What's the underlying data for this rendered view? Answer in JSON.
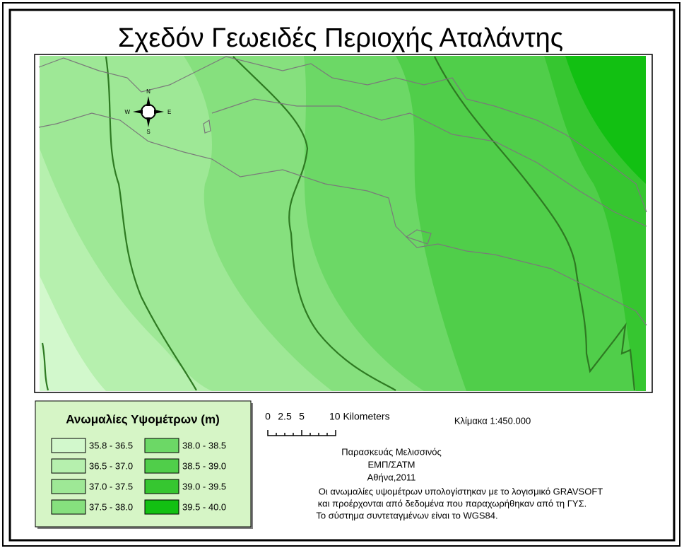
{
  "title": "Σχεδόν Γεωειδές Περιοχής  Αταλάντης",
  "legend": {
    "title": "Ανωμαλίες Υψομέτρων (m)",
    "items": [
      {
        "label": "35.8 - 36.5",
        "color": "#d2f8cc"
      },
      {
        "label": "36.5 - 37.0",
        "color": "#b6f0ae"
      },
      {
        "label": "37.0 - 37.5",
        "color": "#9ee896"
      },
      {
        "label": "37.5 - 38.0",
        "color": "#86e07e"
      },
      {
        "label": "38.0 - 38.5",
        "color": "#6cd866"
      },
      {
        "label": "38.5 - 39.0",
        "color": "#50ce4a"
      },
      {
        "label": "39.0 - 39.5",
        "color": "#36c630"
      },
      {
        "label": "39.5 - 40.0",
        "color": "#12c012"
      }
    ]
  },
  "scale_bar": {
    "labels": [
      "0",
      "2.5",
      "5",
      "10 Kilometers"
    ]
  },
  "scale_ratio": "Κλίμακα 1:450.000",
  "north_arrow": {
    "n": "N",
    "s": "S",
    "e": "E",
    "w": "W"
  },
  "credits": [
    "Παρασκευάς Μελισσινός",
    "ΕΜΠ/ΣΑΤΜ",
    "Αθήνα,2011"
  ],
  "notes": [
    "Οι ανωμαλίες υψομέτρων υπολογίστηκαν με το λογισμικό GRAVSOFT",
    "και προέρχονται από δεδομένα που παραχωρήθηκαν από τη ΓΥΣ.",
    "Το σύστημα συντεταγμένων είναι το WGS84."
  ]
}
